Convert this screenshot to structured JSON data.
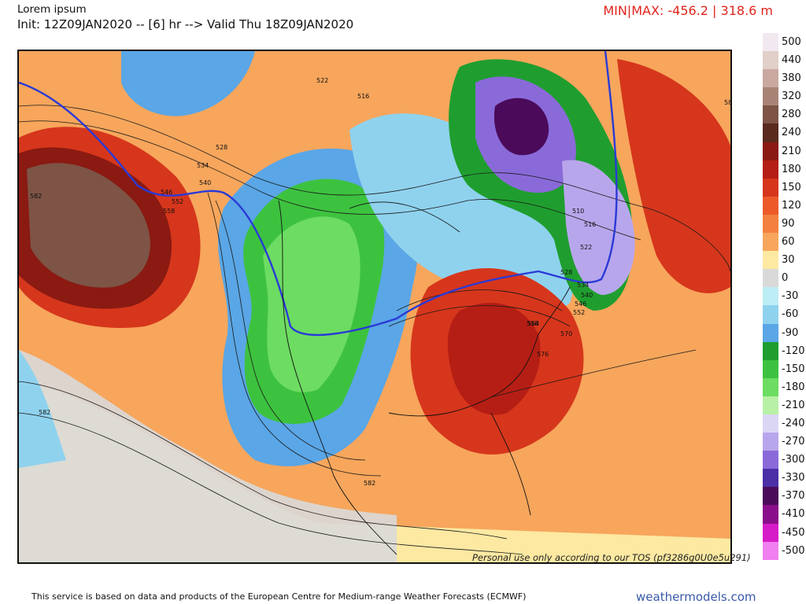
{
  "header": {
    "title": "Lorem ipsum",
    "subtitle": "Init: 12Z09JAN2020 -- [6] hr --> Valid Thu 18Z09JAN2020",
    "minmax": "MIN|MAX: -456.2 | 318.6 m"
  },
  "map": {
    "contour_labels": [
      "522",
      "516",
      "528",
      "534",
      "540",
      "546",
      "552",
      "558",
      "582",
      "582",
      "510",
      "516",
      "522",
      "528",
      "534",
      "540",
      "546",
      "552",
      "558",
      "564",
      "570",
      "576",
      "582",
      "582"
    ],
    "watermark": "Personal use only according to our TOS (pf3286g0U0e5u291)"
  },
  "colorbar": {
    "levels": [
      {
        "label": "500",
        "color": "#f2e8f0"
      },
      {
        "label": "440",
        "color": "#e1cfc9"
      },
      {
        "label": "380",
        "color": "#c9a99f"
      },
      {
        "label": "320",
        "color": "#a98476"
      },
      {
        "label": "280",
        "color": "#7d5446"
      },
      {
        "label": "240",
        "color": "#5a2a1f"
      },
      {
        "label": "210",
        "color": "#8a1a12"
      },
      {
        "label": "180",
        "color": "#b51e14"
      },
      {
        "label": "150",
        "color": "#d6361c"
      },
      {
        "label": "120",
        "color": "#ec5a2a"
      },
      {
        "label": "90",
        "color": "#f3803e"
      },
      {
        "label": "60",
        "color": "#f7a65c"
      },
      {
        "label": "30",
        "color": "#fde9a2"
      },
      {
        "label": "0",
        "color": "#d9d9d9"
      },
      {
        "label": "-30",
        "color": "#bdeef5"
      },
      {
        "label": "-60",
        "color": "#8fd2ee"
      },
      {
        "label": "-90",
        "color": "#5aa6e6"
      },
      {
        "label": "-120",
        "color": "#1f9e2f"
      },
      {
        "label": "-150",
        "color": "#3dc23f"
      },
      {
        "label": "-180",
        "color": "#6ddc62"
      },
      {
        "label": "-210",
        "color": "#b8f0a6"
      },
      {
        "label": "-240",
        "color": "#dcd6f5"
      },
      {
        "label": "-270",
        "color": "#b8a6ec"
      },
      {
        "label": "-300",
        "color": "#8a6ad9"
      },
      {
        "label": "-330",
        "color": "#4a2fa6"
      },
      {
        "label": "-370",
        "color": "#4b0b5a"
      },
      {
        "label": "-410",
        "color": "#8a0f8a"
      },
      {
        "label": "-450",
        "color": "#d61cc8"
      },
      {
        "label": "-500",
        "color": "#f07ff0"
      }
    ]
  },
  "footer": {
    "credit": "This service is based on data and products of the European Centre for Medium-range Weather Forecasts (ECMWF)",
    "brand": "weathermodels.com"
  }
}
